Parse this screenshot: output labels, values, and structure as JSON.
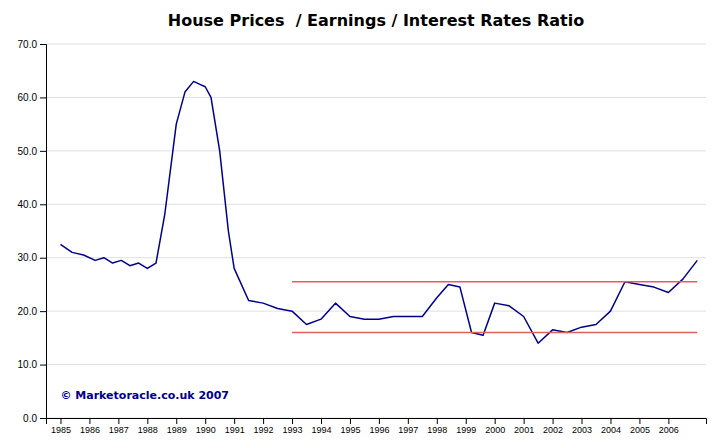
{
  "chart_data": {
    "type": "line",
    "title": "House Prices  / Earnings / Interest Rates Ratio",
    "color": "#00008B",
    "grid": "y",
    "xlim": [
      1984.5,
      2007.3
    ],
    "ylim": [
      0.0,
      70.0
    ],
    "xticks": [
      1985,
      1986,
      1987,
      1988,
      1989,
      1990,
      1991,
      1992,
      1993,
      1994,
      1995,
      1996,
      1997,
      1998,
      1999,
      2000,
      2001,
      2002,
      2003,
      2004,
      2005,
      2006
    ],
    "yticks": [
      {
        "value": 0.0,
        "label": "0.0"
      },
      {
        "value": 10.0,
        "label": "10.0"
      },
      {
        "value": 20.0,
        "label": "20.0"
      },
      {
        "value": 30.0,
        "label": "30.0"
      },
      {
        "value": 40.0,
        "label": "40.0"
      },
      {
        "value": 50.0,
        "label": "50.0"
      },
      {
        "value": 60.0,
        "label": "60.0"
      },
      {
        "value": 70.0,
        "label": "70.0"
      }
    ],
    "x": [
      1985,
      1985.4,
      1985.8,
      1986.2,
      1986.5,
      1986.8,
      1987.1,
      1987.4,
      1987.7,
      1988.0,
      1988.3,
      1988.6,
      1989.0,
      1989.3,
      1989.6,
      1989.8,
      1990.0,
      1990.2,
      1990.5,
      1990.8,
      1991.0,
      1991.5,
      1992.0,
      1992.5,
      1993.0,
      1993.5,
      1994.0,
      1994.5,
      1995.0,
      1995.5,
      1996.0,
      1996.5,
      1997.0,
      1997.5,
      1998.0,
      1998.4,
      1998.8,
      1999.2,
      1999.6,
      2000.0,
      2000.5,
      2001.0,
      2001.5,
      2002.0,
      2002.5,
      2003.0,
      2003.5,
      2004.0,
      2004.5,
      2005.0,
      2005.5,
      2006.0,
      2006.5,
      2007.0
    ],
    "values": [
      32.5,
      31.0,
      30.5,
      29.5,
      30.0,
      29.0,
      29.5,
      28.5,
      29.0,
      28.0,
      29.0,
      38.0,
      55.0,
      61.0,
      63.0,
      62.5,
      62.0,
      60.0,
      50.0,
      35.0,
      28.0,
      22.0,
      21.5,
      20.5,
      20.0,
      17.5,
      18.5,
      21.5,
      19.0,
      18.5,
      18.5,
      19.0,
      19.0,
      19.0,
      22.5,
      25.0,
      24.5,
      16.0,
      15.5,
      21.5,
      21.0,
      19.0,
      14.0,
      16.5,
      16.0,
      17.0,
      17.5,
      20.0,
      25.5,
      25.0,
      24.5,
      23.5,
      26.0,
      29.5
    ],
    "hlines": [
      {
        "y": 25.5,
        "xmin": 1993.0,
        "xmax": 2007.0,
        "color": "#E06060"
      },
      {
        "y": 16.0,
        "xmin": 1993.0,
        "xmax": 2007.0,
        "color": "#E06060"
      }
    ],
    "annotations": [
      {
        "text": "© Marketoracle.co.uk 2007",
        "x": 1985.0,
        "y": 3.5,
        "color": "#00008B"
      }
    ]
  }
}
